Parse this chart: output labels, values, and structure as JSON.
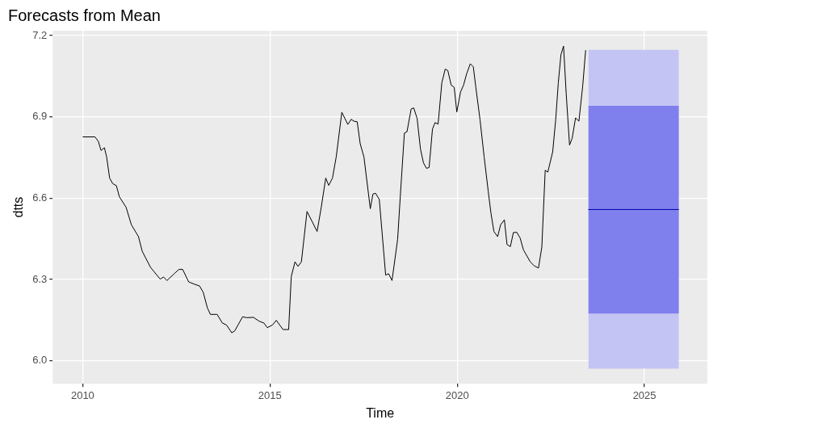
{
  "chart_data": {
    "type": "line",
    "title": "Forecasts from Mean",
    "xlabel": "Time",
    "ylabel": "dtts",
    "xlim": [
      2009.2,
      2026.68
    ],
    "xticks": [
      2010,
      2015,
      2020,
      2025
    ],
    "ylim": [
      5.915,
      7.218
    ],
    "yticks": [
      {
        "value": 6,
        "label": "6.0"
      },
      6.3,
      6.6,
      6.9,
      7.2
    ],
    "grid": true,
    "marker": "none",
    "line_style": "solid",
    "series": [
      {
        "type": "line",
        "color": "#c4c4f4",
        "x": [
          2023.5,
          2025.92
        ],
        "values": [
          null,
          null
        ],
        "lower": [
          5.971,
          5.971
        ],
        "upper": [
          7.147,
          7.147
        ]
      },
      {
        "type": "line",
        "color": "#7f7fee",
        "x": [
          2023.5,
          2025.92
        ],
        "values": [
          null,
          null
        ],
        "lower": [
          6.174,
          6.174
        ],
        "upper": [
          6.941,
          6.941
        ]
      },
      {
        "type": "line",
        "color": "#0000aa",
        "x": [
          2023.5,
          2025.92
        ],
        "values": [
          6.558,
          6.558
        ]
      },
      {
        "type": "line",
        "color": "#000000",
        "x": [
          2010.0,
          2010.33,
          2010.42,
          2010.49,
          2010.58,
          2010.64,
          2010.72,
          2010.8,
          2010.9,
          2010.98,
          2011.16,
          2011.3,
          2011.49,
          2011.59,
          2011.81,
          2012.07,
          2012.16,
          2012.25,
          2012.46,
          2012.57,
          2012.67,
          2012.83,
          2013.01,
          2013.12,
          2013.22,
          2013.33,
          2013.41,
          2013.59,
          2013.73,
          2013.84,
          2013.98,
          2014.06,
          2014.27,
          2014.38,
          2014.56,
          2014.71,
          2014.84,
          2014.93,
          2015.07,
          2015.17,
          2015.35,
          2015.5,
          2015.57,
          2015.67,
          2015.75,
          2015.84,
          2015.99,
          2016.26,
          2016.37,
          2016.49,
          2016.57,
          2016.67,
          2016.77,
          2016.92,
          2017.08,
          2017.17,
          2017.24,
          2017.33,
          2017.41,
          2017.51,
          2017.68,
          2017.75,
          2017.82,
          2017.92,
          2018.09,
          2018.17,
          2018.26,
          2018.41,
          2018.48,
          2018.59,
          2018.66,
          2018.77,
          2018.84,
          2018.93,
          2019.02,
          2019.1,
          2019.18,
          2019.25,
          2019.34,
          2019.41,
          2019.49,
          2019.59,
          2019.68,
          2019.75,
          2019.84,
          2019.92,
          2019.99,
          2020.09,
          2020.17,
          2020.25,
          2020.35,
          2020.43,
          2020.5,
          2020.61,
          2020.72,
          2020.83,
          2020.9,
          2020.98,
          2021.08,
          2021.16,
          2021.26,
          2021.33,
          2021.42,
          2021.5,
          2021.59,
          2021.68,
          2021.77,
          2021.95,
          2022.06,
          2022.17,
          2022.26,
          2022.35,
          2022.42,
          2022.55,
          2022.63,
          2022.7,
          2022.77,
          2022.84,
          2022.91,
          2023.0,
          2023.07,
          2023.16,
          2023.25,
          2023.35,
          2023.43
        ],
        "values": [
          6.826,
          6.826,
          6.809,
          6.776,
          6.786,
          6.752,
          6.674,
          6.654,
          6.646,
          6.605,
          6.566,
          6.502,
          6.458,
          6.404,
          6.345,
          6.301,
          6.309,
          6.296,
          6.323,
          6.337,
          6.337,
          6.291,
          6.281,
          6.276,
          6.252,
          6.195,
          6.171,
          6.171,
          6.139,
          6.132,
          6.103,
          6.11,
          6.162,
          6.159,
          6.16,
          6.146,
          6.139,
          6.122,
          6.132,
          6.149,
          6.115,
          6.115,
          6.311,
          6.365,
          6.348,
          6.365,
          6.551,
          6.477,
          6.566,
          6.674,
          6.647,
          6.674,
          6.752,
          6.917,
          6.872,
          6.891,
          6.884,
          6.882,
          6.801,
          6.752,
          6.561,
          6.615,
          6.618,
          6.595,
          6.316,
          6.321,
          6.296,
          6.448,
          6.605,
          6.84,
          6.845,
          6.929,
          6.933,
          6.894,
          6.781,
          6.73,
          6.71,
          6.713,
          6.855,
          6.879,
          6.873,
          7.026,
          7.076,
          7.071,
          7.017,
          7.009,
          6.918,
          6.992,
          7.017,
          7.058,
          7.096,
          7.085,
          7.007,
          6.889,
          6.752,
          6.624,
          6.546,
          6.477,
          6.458,
          6.502,
          6.52,
          6.429,
          6.421,
          6.473,
          6.474,
          6.453,
          6.409,
          6.365,
          6.35,
          6.342,
          6.419,
          6.703,
          6.696,
          6.771,
          6.889,
          7.026,
          7.129,
          7.161,
          6.987,
          6.796,
          6.821,
          6.896,
          6.884,
          7.012,
          7.146
        ]
      }
    ]
  }
}
